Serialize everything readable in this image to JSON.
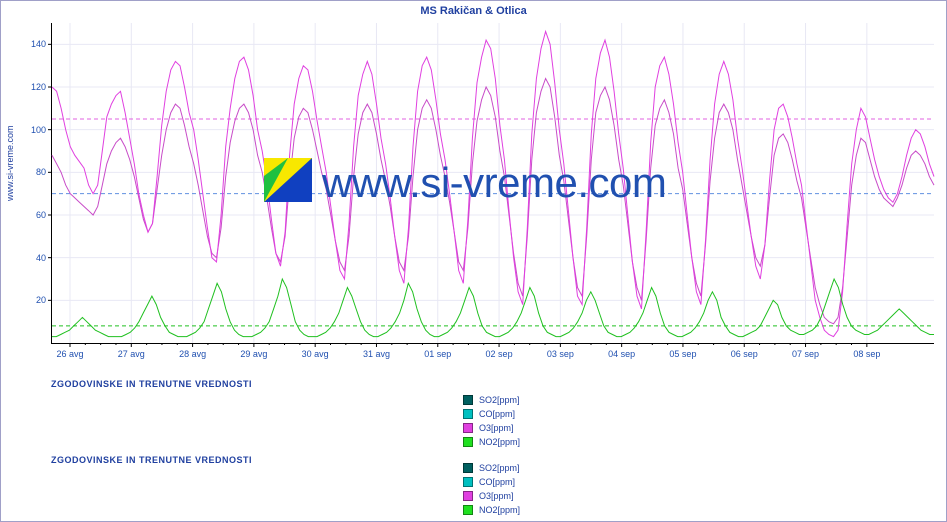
{
  "title": "MS Rakičan & Otlica",
  "y_axis_label": "www.si-vreme.com",
  "watermark_text": "www.si-vreme.com",
  "section_label_1": "ZGODOVINSKE IN TRENUTNE VREDNOSTI",
  "section_label_2": "ZGODOVINSKE IN TRENUTNE VREDNOSTI",
  "colors": {
    "title": "#2040a0",
    "axis_text": "#2050b0",
    "grid": "#e8e8f4",
    "frame": "#a0a0c8",
    "series_o3_a": "#e040e0",
    "series_o3_b": "#c84cc8",
    "series_no2": "#20c020",
    "ref_line_upper": "#e060e0",
    "ref_line_lower": "#6090e0",
    "swatch_so2": "#006060",
    "swatch_co": "#00c0c0",
    "swatch_o3": "#e040e0",
    "swatch_no2": "#20e020",
    "logo_yellow": "#f8e800",
    "logo_green": "#20c040",
    "logo_blue": "#1040c0"
  },
  "ylim": [
    0,
    150
  ],
  "y_ticks": [
    20,
    40,
    60,
    80,
    100,
    120,
    140
  ],
  "x_ticks": [
    "26 avg",
    "27 avg",
    "28 avg",
    "29 avg",
    "30 avg",
    "31 avg",
    "01 sep",
    "02 sep",
    "03 sep",
    "04 sep",
    "05 sep",
    "06 sep",
    "07 sep",
    "08 sep"
  ],
  "ref_lines": [
    {
      "y": 105,
      "color_key": "ref_line_upper"
    },
    {
      "y": 70,
      "color_key": "ref_line_lower"
    }
  ],
  "ref_lines_green": [
    {
      "y": 8
    }
  ],
  "legend": [
    {
      "label": "SO2[ppm]",
      "swatch_key": "swatch_so2"
    },
    {
      "label": "CO[ppm]",
      "swatch_key": "swatch_co"
    },
    {
      "label": "O3[ppm]",
      "swatch_key": "swatch_o3"
    },
    {
      "label": "NO2[ppm]",
      "swatch_key": "swatch_no2"
    }
  ],
  "series": {
    "o3_a": [
      120,
      118,
      110,
      100,
      92,
      88,
      85,
      82,
      74,
      70,
      74,
      90,
      106,
      112,
      116,
      118,
      108,
      96,
      84,
      70,
      60,
      52,
      56,
      78,
      102,
      118,
      128,
      132,
      130,
      120,
      108,
      100,
      86,
      70,
      54,
      40,
      38,
      60,
      92,
      110,
      124,
      132,
      134,
      128,
      116,
      100,
      90,
      76,
      58,
      42,
      36,
      52,
      88,
      112,
      124,
      130,
      128,
      118,
      104,
      92,
      80,
      64,
      48,
      34,
      30,
      56,
      92,
      116,
      126,
      132,
      126,
      112,
      96,
      84,
      68,
      50,
      34,
      28,
      54,
      92,
      118,
      130,
      134,
      128,
      114,
      98,
      86,
      70,
      52,
      34,
      28,
      58,
      96,
      122,
      134,
      142,
      138,
      124,
      102,
      86,
      62,
      40,
      24,
      18,
      54,
      98,
      124,
      138,
      146,
      140,
      122,
      100,
      84,
      62,
      40,
      22,
      18,
      54,
      98,
      124,
      136,
      142,
      134,
      118,
      98,
      82,
      60,
      38,
      22,
      16,
      52,
      94,
      120,
      130,
      134,
      126,
      112,
      94,
      80,
      60,
      40,
      24,
      18,
      48,
      86,
      112,
      126,
      132,
      126,
      114,
      96,
      82,
      66,
      50,
      36,
      30,
      46,
      76,
      100,
      110,
      112,
      106,
      96,
      84,
      74,
      56,
      38,
      20,
      12,
      6,
      4,
      3,
      6,
      24,
      56,
      84,
      100,
      110,
      106,
      96,
      86,
      78,
      72,
      68,
      66,
      70,
      78,
      88,
      96,
      100,
      98,
      92,
      84,
      78
    ],
    "o3_b": [
      88,
      84,
      80,
      74,
      70,
      68,
      66,
      64,
      62,
      60,
      64,
      74,
      84,
      90,
      94,
      96,
      92,
      86,
      78,
      68,
      58,
      52,
      56,
      72,
      88,
      100,
      108,
      112,
      110,
      102,
      92,
      84,
      74,
      62,
      50,
      42,
      40,
      54,
      78,
      94,
      104,
      110,
      112,
      108,
      100,
      88,
      80,
      68,
      54,
      42,
      38,
      50,
      76,
      96,
      106,
      110,
      108,
      100,
      90,
      80,
      72,
      60,
      48,
      38,
      34,
      50,
      78,
      98,
      108,
      112,
      108,
      98,
      86,
      76,
      64,
      50,
      38,
      34,
      50,
      78,
      100,
      110,
      114,
      110,
      100,
      88,
      78,
      66,
      52,
      38,
      34,
      54,
      84,
      104,
      114,
      120,
      116,
      106,
      90,
      78,
      60,
      42,
      28,
      22,
      50,
      86,
      108,
      118,
      124,
      120,
      106,
      88,
      76,
      58,
      40,
      26,
      22,
      50,
      86,
      108,
      116,
      120,
      114,
      102,
      86,
      74,
      56,
      38,
      26,
      20,
      48,
      82,
      102,
      110,
      114,
      108,
      98,
      82,
      72,
      56,
      40,
      28,
      22,
      46,
      76,
      96,
      108,
      112,
      108,
      100,
      86,
      74,
      62,
      50,
      40,
      36,
      46,
      68,
      88,
      96,
      98,
      94,
      86,
      76,
      68,
      54,
      40,
      26,
      18,
      12,
      10,
      9,
      12,
      26,
      50,
      74,
      88,
      96,
      94,
      86,
      78,
      72,
      68,
      66,
      64,
      68,
      74,
      82,
      88,
      90,
      88,
      84,
      78,
      74
    ],
    "no2": [
      3,
      3,
      4,
      5,
      6,
      8,
      10,
      12,
      10,
      8,
      6,
      5,
      4,
      3,
      3,
      3,
      3,
      4,
      5,
      7,
      10,
      14,
      18,
      22,
      18,
      12,
      8,
      5,
      4,
      3,
      3,
      3,
      4,
      5,
      7,
      10,
      16,
      22,
      28,
      24,
      16,
      10,
      6,
      4,
      3,
      3,
      3,
      4,
      5,
      7,
      10,
      16,
      22,
      30,
      26,
      18,
      10,
      6,
      4,
      3,
      3,
      3,
      4,
      5,
      7,
      10,
      14,
      20,
      26,
      22,
      16,
      10,
      6,
      4,
      3,
      3,
      4,
      5,
      7,
      10,
      14,
      20,
      28,
      24,
      16,
      10,
      6,
      4,
      3,
      3,
      4,
      5,
      7,
      10,
      14,
      20,
      26,
      22,
      14,
      8,
      5,
      4,
      3,
      3,
      4,
      5,
      7,
      10,
      14,
      20,
      26,
      22,
      14,
      8,
      5,
      4,
      3,
      3,
      4,
      5,
      7,
      10,
      14,
      20,
      24,
      20,
      14,
      8,
      5,
      4,
      3,
      3,
      4,
      5,
      7,
      10,
      14,
      20,
      26,
      22,
      14,
      8,
      5,
      4,
      3,
      3,
      4,
      5,
      7,
      10,
      14,
      20,
      24,
      20,
      12,
      8,
      5,
      4,
      3,
      3,
      4,
      5,
      6,
      8,
      12,
      16,
      20,
      18,
      12,
      8,
      6,
      5,
      4,
      4,
      5,
      6,
      8,
      12,
      18,
      24,
      30,
      26,
      18,
      12,
      8,
      6,
      5,
      4,
      4,
      5,
      6,
      8,
      10,
      12,
      14,
      16,
      14,
      12,
      10,
      8,
      6,
      5,
      4,
      4
    ]
  }
}
